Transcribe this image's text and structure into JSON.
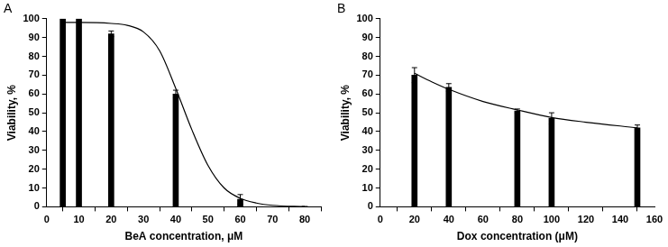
{
  "chart_data": [
    {
      "type": "bar",
      "title": "A",
      "xlabel": "BeA concentration, μM",
      "ylabel": "Viability, %",
      "xlim": [
        0,
        85
      ],
      "xticks": [
        0,
        10,
        20,
        30,
        40,
        50,
        60,
        70,
        80
      ],
      "ylim": [
        0,
        100
      ],
      "yticks": [
        0,
        10,
        20,
        30,
        40,
        50,
        60,
        70,
        80,
        90,
        100
      ],
      "grid": false,
      "series": [
        {
          "type": "bar",
          "color": "#000000",
          "x": [
            5,
            10,
            20,
            40,
            60,
            80
          ],
          "values": [
            100,
            100,
            92,
            60,
            4,
            0.3
          ],
          "errors": [
            null,
            null,
            1.5,
            2,
            2.5,
            null
          ]
        },
        {
          "type": "line",
          "color": "#000000",
          "line_style": "solid",
          "x": [
            5,
            10,
            20,
            25,
            30,
            35,
            40,
            45,
            50,
            55,
            60,
            65,
            70,
            80
          ],
          "values": [
            98,
            98,
            97.5,
            96.5,
            93,
            83,
            63,
            41,
            22,
            10,
            4.5,
            2,
            0.8,
            0.1
          ]
        }
      ]
    },
    {
      "type": "bar",
      "title": "B",
      "xlabel": "Dox concentration (μM)",
      "ylabel": "Viability, %",
      "xlim": [
        0,
        160
      ],
      "xticks": [
        0,
        20,
        40,
        60,
        80,
        100,
        120,
        140,
        160
      ],
      "ylim": [
        0,
        100
      ],
      "yticks": [
        0,
        10,
        20,
        30,
        40,
        50,
        60,
        70,
        80,
        90,
        100
      ],
      "grid": false,
      "series": [
        {
          "type": "bar",
          "color": "#000000",
          "x": [
            20,
            40,
            80,
            100,
            150
          ],
          "values": [
            70,
            63.5,
            51,
            47,
            42
          ],
          "errors": [
            4,
            2,
            1,
            3,
            1.5
          ]
        },
        {
          "type": "line",
          "color": "#000000",
          "line_style": "solid",
          "x": [
            20,
            30,
            40,
            60,
            80,
            100,
            120,
            150
          ],
          "values": [
            71,
            66.5,
            62.5,
            56,
            51.5,
            47.5,
            45,
            42
          ]
        }
      ]
    }
  ]
}
